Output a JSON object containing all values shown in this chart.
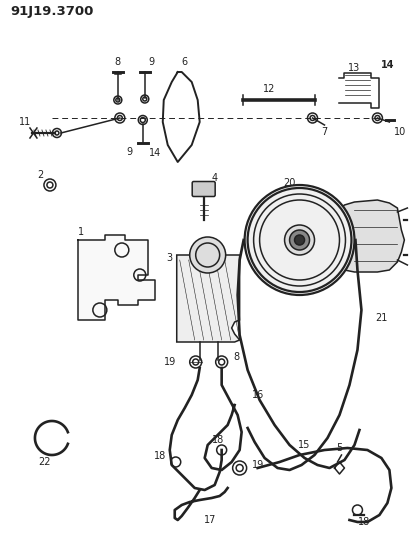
{
  "title": "91J19.3700",
  "bg_color": "#ffffff",
  "fig_width": 4.1,
  "fig_height": 5.33,
  "dpi": 100,
  "line_color": "#222222",
  "lw": 1.1
}
